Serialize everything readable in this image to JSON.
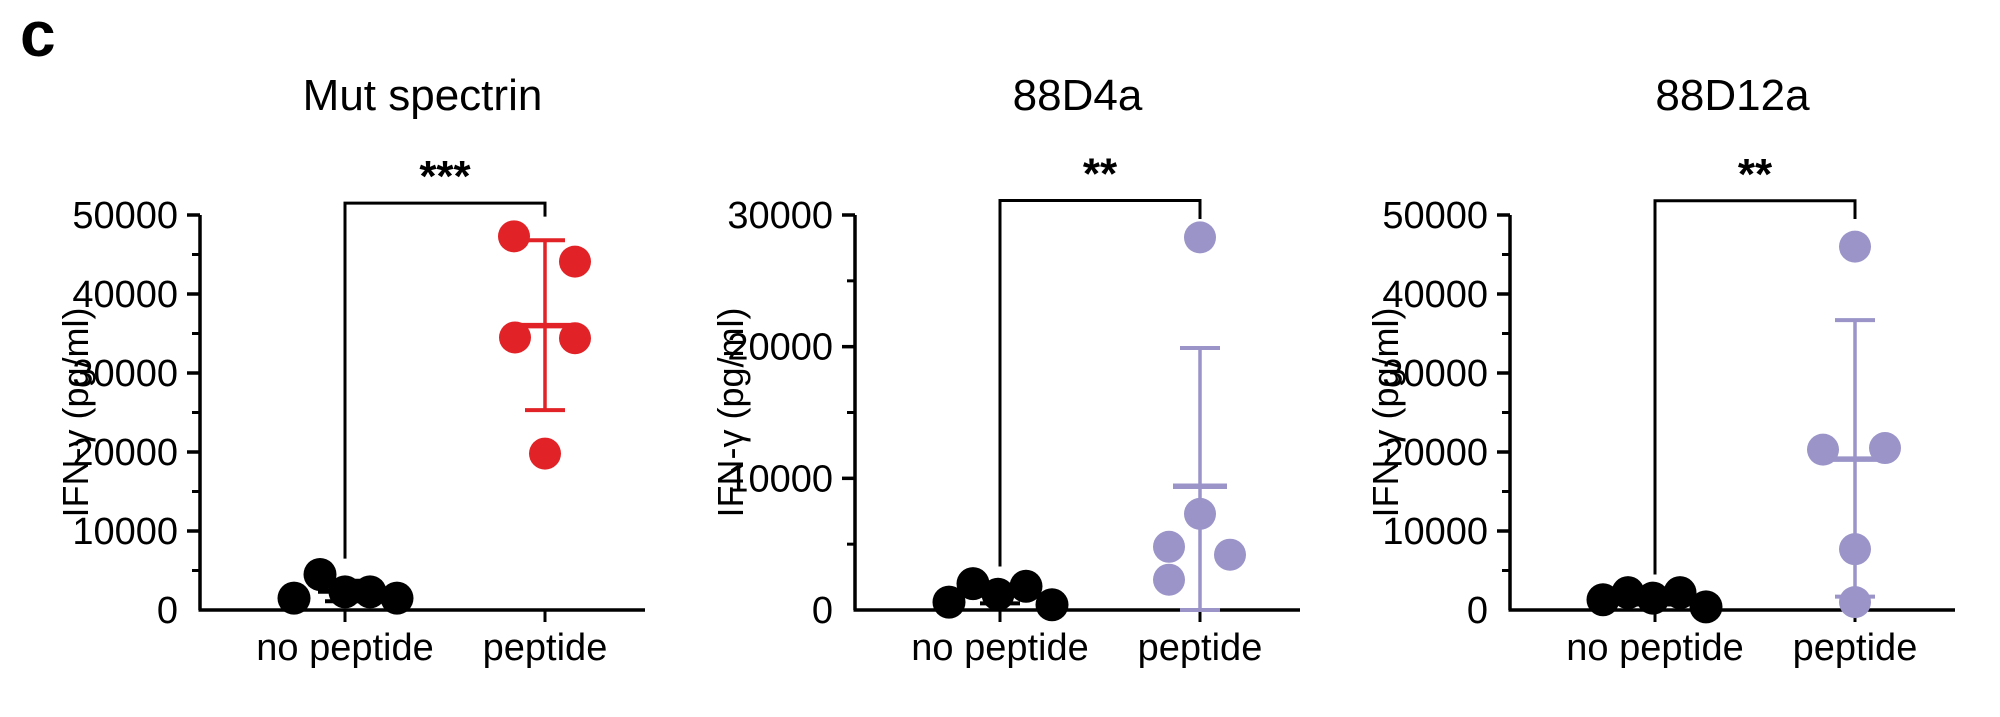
{
  "panel_label": "c",
  "figure_type": "scatter-panel-figure",
  "chart_data": [
    {
      "type": "scatter",
      "title": "Mut spectrin",
      "ylabel": "IFN-γ (pg/ml)",
      "ylim": [
        0,
        50000
      ],
      "ytick_step": 10000,
      "yminor_step": 5000,
      "grid": false,
      "categories": [
        "no peptide",
        "peptide"
      ],
      "significance": "***",
      "bracket": {
        "left_bottom": 6500,
        "top": 51500,
        "right_bottom": 49800
      },
      "groups": [
        {
          "category": "no peptide",
          "color": "#000000",
          "points": [
            {
              "value": 1500,
              "jitter": -51
            },
            {
              "value": 4500,
              "jitter": -25
            },
            {
              "value": 2300,
              "jitter": 0
            },
            {
              "value": 2300,
              "jitter": 25
            },
            {
              "value": 1500,
              "jitter": 52
            }
          ],
          "mean": 2400,
          "sd_low": 1100,
          "sd_high": 3700
        },
        {
          "category": "peptide",
          "color": "#e12226",
          "points": [
            {
              "value": 47300,
              "jitter": -31
            },
            {
              "value": 44100,
              "jitter": 30
            },
            {
              "value": 34500,
              "jitter": -30
            },
            {
              "value": 34400,
              "jitter": 30
            },
            {
              "value": 19800,
              "jitter": 0
            }
          ],
          "mean": 36000,
          "sd_low": 25300,
          "sd_high": 46800
        }
      ]
    },
    {
      "type": "scatter",
      "title": "88D4a",
      "ylabel": "IFN-γ (pg/ml)",
      "ylim": [
        0,
        30000
      ],
      "ytick_step": 10000,
      "yminor_step": 5000,
      "grid": false,
      "categories": [
        "no peptide",
        "peptide"
      ],
      "significance": "**",
      "bracket": {
        "left_bottom": 3300,
        "top": 31100,
        "right_bottom": 29700
      },
      "groups": [
        {
          "category": "no peptide",
          "color": "#000000",
          "points": [
            {
              "value": 600,
              "jitter": -51
            },
            {
              "value": 2000,
              "jitter": -27
            },
            {
              "value": 1200,
              "jitter": -2
            },
            {
              "value": 1800,
              "jitter": 26
            },
            {
              "value": 400,
              "jitter": 52
            }
          ],
          "mean": 1200,
          "sd_low": 500,
          "sd_high": 1900
        },
        {
          "category": "peptide",
          "color": "#9a94c8",
          "points": [
            {
              "value": 28300,
              "jitter": 0
            },
            {
              "value": 7300,
              "jitter": 0
            },
            {
              "value": 4800,
              "jitter": -31
            },
            {
              "value": 4200,
              "jitter": 30
            },
            {
              "value": 2300,
              "jitter": -31
            }
          ],
          "mean": 9400,
          "sd_low": 0,
          "sd_high": 19900
        }
      ]
    },
    {
      "type": "scatter",
      "title": "88D12a",
      "ylabel": "IFN-γ (pg/ml)",
      "ylim": [
        0,
        50000
      ],
      "ytick_step": 10000,
      "yminor_step": 5000,
      "grid": false,
      "categories": [
        "no peptide",
        "peptide"
      ],
      "significance": "**",
      "bracket": {
        "left_bottom": 4500,
        "top": 51800,
        "right_bottom": 49500
      },
      "groups": [
        {
          "category": "no peptide",
          "color": "#000000",
          "points": [
            {
              "value": 1300,
              "jitter": -52
            },
            {
              "value": 2200,
              "jitter": -27
            },
            {
              "value": 1500,
              "jitter": -2
            },
            {
              "value": 2200,
              "jitter": 25
            },
            {
              "value": 400,
              "jitter": 51
            }
          ],
          "mean": 1500,
          "sd_low": 700,
          "sd_high": 2300
        },
        {
          "category": "peptide",
          "color": "#9a94c8",
          "points": [
            {
              "value": 46000,
              "jitter": 0
            },
            {
              "value": 20300,
              "jitter": -32
            },
            {
              "value": 20500,
              "jitter": 30
            },
            {
              "value": 7700,
              "jitter": 0
            },
            {
              "value": 1000,
              "jitter": 0
            }
          ],
          "mean": 19100,
          "sd_low": 1700,
          "sd_high": 36700
        }
      ]
    }
  ]
}
